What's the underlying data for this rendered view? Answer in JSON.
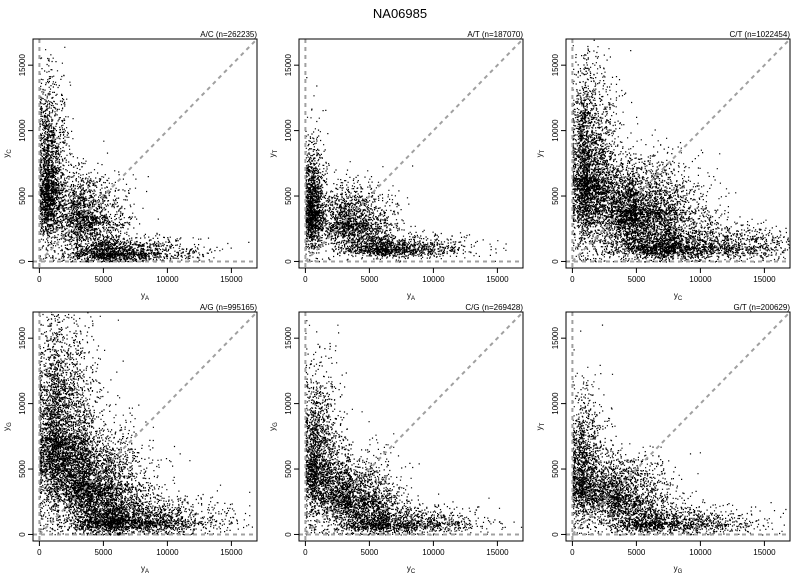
{
  "title": "NA06985",
  "chart_data": [
    {
      "type": "scatter",
      "title": "A/C (n=262235)",
      "pair": "A/C",
      "n": 262235,
      "xlabel": "yA",
      "xlabel_main": "y",
      "xlabel_sub": "A",
      "ylabel": "yC",
      "ylabel_main": "y",
      "ylabel_sub": "C",
      "xlim": [
        -500,
        17000
      ],
      "ylim": [
        -500,
        17000
      ],
      "xticks": [
        0,
        5000,
        10000,
        15000
      ],
      "yticks": [
        0,
        5000,
        10000,
        15000
      ],
      "xtick_labels": [
        "0",
        "5000",
        "10000",
        "15000"
      ],
      "ytick_labels": [
        "0",
        "5000",
        "10000",
        "15000"
      ],
      "reference_lines": [
        "x=0",
        "y=0",
        "y=x"
      ],
      "reference_line_color": "#a0a0a0",
      "point_color": "#000000",
      "clusters": {
        "homozygous_x": {
          "center": [
            6000,
            700
          ],
          "spread": [
            3000,
            600
          ],
          "weight": 0.3
        },
        "homozygous_y": {
          "center": [
            700,
            6000
          ],
          "spread": [
            700,
            3800
          ],
          "weight": 0.4
        },
        "heterozygous": {
          "center": [
            3500,
            3500
          ],
          "spread": [
            1700,
            1700
          ],
          "weight": 0.3
        }
      }
    },
    {
      "type": "scatter",
      "title": "A/T (n=187070)",
      "pair": "A/T",
      "n": 187070,
      "xlabel": "yA",
      "xlabel_main": "y",
      "xlabel_sub": "A",
      "ylabel": "yT",
      "ylabel_main": "y",
      "ylabel_sub": "T",
      "xlim": [
        -500,
        17000
      ],
      "ylim": [
        -500,
        17000
      ],
      "xticks": [
        0,
        5000,
        10000,
        15000
      ],
      "yticks": [
        0,
        5000,
        10000,
        15000
      ],
      "xtick_labels": [
        "0",
        "5000",
        "10000",
        "15000"
      ],
      "ytick_labels": [
        "0",
        "5000",
        "10000",
        "15000"
      ],
      "reference_lines": [
        "x=0",
        "y=0",
        "y=x"
      ],
      "reference_line_color": "#a0a0a0",
      "point_color": "#000000",
      "clusters": {
        "homozygous_x": {
          "center": [
            6500,
            1000
          ],
          "spread": [
            3000,
            500
          ],
          "weight": 0.3
        },
        "homozygous_y": {
          "center": [
            500,
            4000
          ],
          "spread": [
            500,
            2500
          ],
          "weight": 0.35
        },
        "heterozygous": {
          "center": [
            3500,
            3000
          ],
          "spread": [
            1800,
            1400
          ],
          "weight": 0.35
        }
      }
    },
    {
      "type": "scatter",
      "title": "C/T (n=1022454)",
      "pair": "C/T",
      "n": 1022454,
      "xlabel": "yC",
      "xlabel_main": "y",
      "xlabel_sub": "C",
      "ylabel": "yT",
      "ylabel_main": "y",
      "ylabel_sub": "T",
      "xlim": [
        -500,
        17000
      ],
      "ylim": [
        -500,
        17000
      ],
      "xticks": [
        0,
        5000,
        10000,
        15000
      ],
      "yticks": [
        0,
        5000,
        10000,
        15000
      ],
      "xtick_labels": [
        "0",
        "5000",
        "10000",
        "15000"
      ],
      "ytick_labels": [
        "0",
        "5000",
        "10000",
        "15000"
      ],
      "reference_lines": [
        "x=0",
        "y=0",
        "y=x"
      ],
      "reference_line_color": "#a0a0a0",
      "point_color": "#000000",
      "clusters": {
        "homozygous_x": {
          "center": [
            8000,
            1200
          ],
          "spread": [
            4500,
            900
          ],
          "weight": 0.3
        },
        "homozygous_y": {
          "center": [
            1200,
            6500
          ],
          "spread": [
            1100,
            4000
          ],
          "weight": 0.35
        },
        "heterozygous": {
          "center": [
            5000,
            4000
          ],
          "spread": [
            2500,
            1900
          ],
          "weight": 0.35
        }
      }
    },
    {
      "type": "scatter",
      "title": "A/G (n=995165)",
      "pair": "A/G",
      "n": 995165,
      "xlabel": "yA",
      "xlabel_main": "y",
      "xlabel_sub": "A",
      "ylabel": "yG",
      "ylabel_main": "y",
      "ylabel_sub": "G",
      "xlim": [
        -500,
        17000
      ],
      "ylim": [
        -500,
        17000
      ],
      "xticks": [
        0,
        5000,
        10000,
        15000
      ],
      "yticks": [
        0,
        5000,
        10000,
        15000
      ],
      "xtick_labels": [
        "0",
        "5000",
        "10000",
        "15000"
      ],
      "ytick_labels": [
        "0",
        "5000",
        "10000",
        "15000"
      ],
      "reference_lines": [
        "x=0",
        "y=0",
        "y=x"
      ],
      "reference_line_color": "#a0a0a0",
      "point_color": "#000000",
      "clusters": {
        "homozygous_x": {
          "center": [
            6500,
            1100
          ],
          "spread": [
            3500,
            900
          ],
          "weight": 0.3
        },
        "homozygous_y": {
          "center": [
            1500,
            7500
          ],
          "spread": [
            1500,
            4500
          ],
          "weight": 0.4
        },
        "heterozygous": {
          "center": [
            4000,
            4000
          ],
          "spread": [
            2200,
            2200
          ],
          "weight": 0.3
        }
      }
    },
    {
      "type": "scatter",
      "title": "C/G (n=269428)",
      "pair": "C/G",
      "n": 269428,
      "xlabel": "yC",
      "xlabel_main": "y",
      "xlabel_sub": "C",
      "ylabel": "yG",
      "ylabel_main": "y",
      "ylabel_sub": "G",
      "xlim": [
        -500,
        17000
      ],
      "ylim": [
        -500,
        17000
      ],
      "xticks": [
        0,
        5000,
        10000,
        15000
      ],
      "yticks": [
        0,
        5000,
        10000,
        15000
      ],
      "xtick_labels": [
        "0",
        "5000",
        "10000",
        "15000"
      ],
      "ytick_labels": [
        "0",
        "5000",
        "10000",
        "15000"
      ],
      "reference_lines": [
        "x=0",
        "y=0",
        "y=x"
      ],
      "reference_line_color": "#a0a0a0",
      "point_color": "#000000",
      "clusters": {
        "homozygous_x": {
          "center": [
            6500,
            900
          ],
          "spread": [
            3500,
            700
          ],
          "weight": 0.3
        },
        "homozygous_y": {
          "center": [
            900,
            5500
          ],
          "spread": [
            900,
            3500
          ],
          "weight": 0.38
        },
        "heterozygous": {
          "center": [
            3500,
            3000
          ],
          "spread": [
            1900,
            1600
          ],
          "weight": 0.32
        }
      }
    },
    {
      "type": "scatter",
      "title": "G/T (n=200629)",
      "pair": "G/T",
      "n": 200629,
      "xlabel": "yG",
      "xlabel_main": "y",
      "xlabel_sub": "G",
      "ylabel": "yT",
      "ylabel_main": "y",
      "ylabel_sub": "T",
      "xlim": [
        -500,
        17000
      ],
      "ylim": [
        -500,
        17000
      ],
      "xticks": [
        0,
        5000,
        10000,
        15000
      ],
      "yticks": [
        0,
        5000,
        10000,
        15000
      ],
      "xtick_labels": [
        "0",
        "5000",
        "10000",
        "15000"
      ],
      "ytick_labels": [
        "0",
        "5000",
        "10000",
        "15000"
      ],
      "reference_lines": [
        "x=0",
        "y=0",
        "y=x"
      ],
      "reference_line_color": "#a0a0a0",
      "point_color": "#000000",
      "clusters": {
        "homozygous_x": {
          "center": [
            7000,
            900
          ],
          "spread": [
            3800,
            700
          ],
          "weight": 0.32
        },
        "homozygous_y": {
          "center": [
            900,
            4500
          ],
          "spread": [
            900,
            3000
          ],
          "weight": 0.34
        },
        "heterozygous": {
          "center": [
            3800,
            3000
          ],
          "spread": [
            2000,
            1500
          ],
          "weight": 0.34
        }
      }
    }
  ]
}
